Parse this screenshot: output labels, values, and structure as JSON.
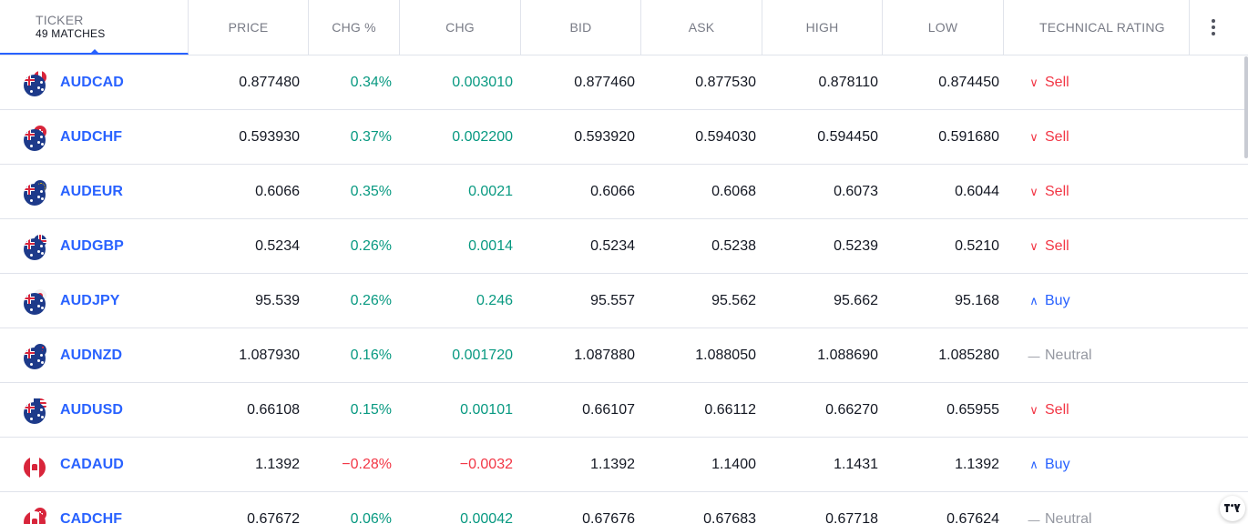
{
  "header": {
    "ticker_label": "TICKER",
    "matches": "49 MATCHES",
    "columns": {
      "price": "PRICE",
      "chg_pct": "CHG %",
      "chg": "CHG",
      "bid": "BID",
      "ask": "ASK",
      "high": "HIGH",
      "low": "LOW",
      "rating": "TECHNICAL RATING"
    },
    "menu_icon": "more-vertical-icon"
  },
  "colors": {
    "link": "#2962ff",
    "positive": "#089981",
    "negative": "#f23645",
    "neutral": "#9598a1"
  },
  "rating_icons": {
    "sell": "chevron-down-icon",
    "buy": "chevron-up-icon",
    "neutral": "dash-icon"
  },
  "rows": [
    {
      "symbol": "AUDCAD",
      "base_flag": "au",
      "quote_flag": "ca",
      "price": "0.877480",
      "chg_pct": "0.34%",
      "chg": "0.003010",
      "bid": "0.877460",
      "ask": "0.877530",
      "high": "0.878110",
      "low": "0.874450",
      "rating": "Sell",
      "rating_type": "sell",
      "direction": "pos"
    },
    {
      "symbol": "AUDCHF",
      "base_flag": "au",
      "quote_flag": "ch",
      "price": "0.593930",
      "chg_pct": "0.37%",
      "chg": "0.002200",
      "bid": "0.593920",
      "ask": "0.594030",
      "high": "0.594450",
      "low": "0.591680",
      "rating": "Sell",
      "rating_type": "sell",
      "direction": "pos"
    },
    {
      "symbol": "AUDEUR",
      "base_flag": "au",
      "quote_flag": "eu",
      "price": "0.6066",
      "chg_pct": "0.35%",
      "chg": "0.0021",
      "bid": "0.6066",
      "ask": "0.6068",
      "high": "0.6073",
      "low": "0.6044",
      "rating": "Sell",
      "rating_type": "sell",
      "direction": "pos"
    },
    {
      "symbol": "AUDGBP",
      "base_flag": "au",
      "quote_flag": "gb",
      "price": "0.5234",
      "chg_pct": "0.26%",
      "chg": "0.0014",
      "bid": "0.5234",
      "ask": "0.5238",
      "high": "0.5239",
      "low": "0.5210",
      "rating": "Sell",
      "rating_type": "sell",
      "direction": "pos"
    },
    {
      "symbol": "AUDJPY",
      "base_flag": "au",
      "quote_flag": "jp",
      "price": "95.539",
      "chg_pct": "0.26%",
      "chg": "0.246",
      "bid": "95.557",
      "ask": "95.562",
      "high": "95.662",
      "low": "95.168",
      "rating": "Buy",
      "rating_type": "buy",
      "direction": "pos"
    },
    {
      "symbol": "AUDNZD",
      "base_flag": "au",
      "quote_flag": "nz",
      "price": "1.087930",
      "chg_pct": "0.16%",
      "chg": "0.001720",
      "bid": "1.087880",
      "ask": "1.088050",
      "high": "1.088690",
      "low": "1.085280",
      "rating": "Neutral",
      "rating_type": "neutral",
      "direction": "pos"
    },
    {
      "symbol": "AUDUSD",
      "base_flag": "au",
      "quote_flag": "us",
      "price": "0.66108",
      "chg_pct": "0.15%",
      "chg": "0.00101",
      "bid": "0.66107",
      "ask": "0.66112",
      "high": "0.66270",
      "low": "0.65955",
      "rating": "Sell",
      "rating_type": "sell",
      "direction": "pos"
    },
    {
      "symbol": "CADAUD",
      "base_flag": "ca",
      "quote_flag": "au",
      "price": "1.1392",
      "chg_pct": "−0.28%",
      "chg": "−0.0032",
      "bid": "1.1392",
      "ask": "1.1400",
      "high": "1.1431",
      "low": "1.1392",
      "rating": "Buy",
      "rating_type": "buy",
      "direction": "neg"
    },
    {
      "symbol": "CADCHF",
      "base_flag": "ca",
      "quote_flag": "ch",
      "price": "0.67672",
      "chg_pct": "0.06%",
      "chg": "0.00042",
      "bid": "0.67676",
      "ask": "0.67683",
      "high": "0.67718",
      "low": "0.67624",
      "rating": "Neutral",
      "rating_type": "neutral",
      "direction": "pos"
    }
  ],
  "watermark": "tradingview-logo-icon"
}
